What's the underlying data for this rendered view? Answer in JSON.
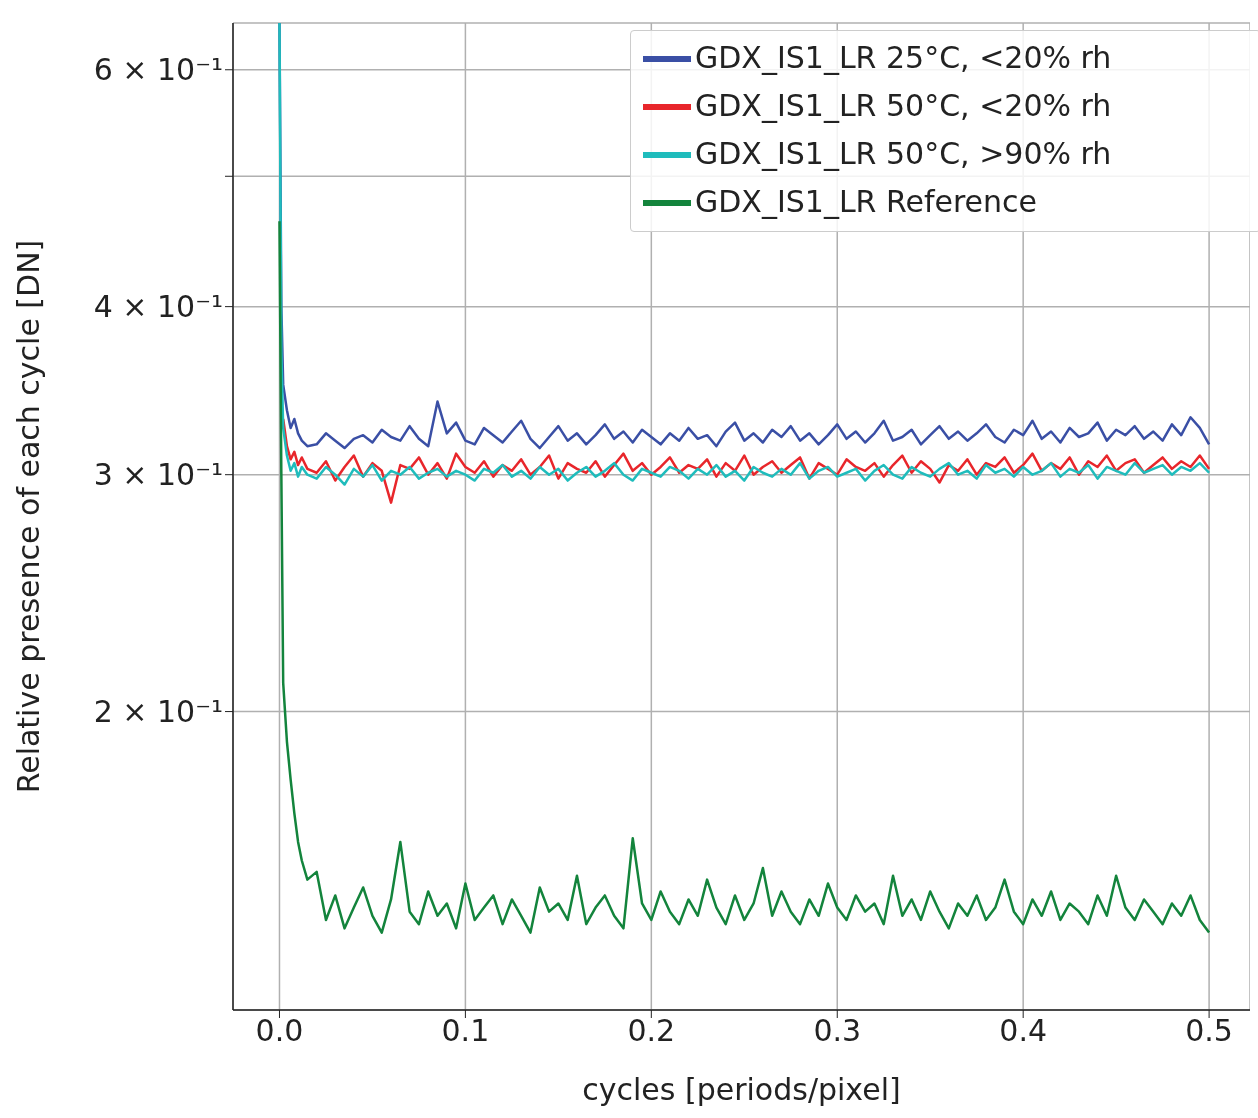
{
  "chart_data": {
    "type": "line",
    "xlabel": "cycles [periods/pixel]",
    "ylabel": "Relative presence of each cycle [DN]",
    "log": "y",
    "grid": true,
    "legend": "top right",
    "line_style": "solid",
    "marker": "none",
    "xlim": [
      -0.025,
      0.522
    ],
    "xticks": [
      {
        "value": 0,
        "label": "0.0"
      },
      0.1,
      0.2,
      0.3,
      0.4,
      0.5
    ],
    "ylim": [
      0.12,
      0.65
    ],
    "yticks": [
      {
        "value": 0.2,
        "label": "2 × 10⁻¹"
      },
      {
        "value": 0.3,
        "label": "3 × 10⁻¹"
      },
      {
        "value": 0.4,
        "label": "4 × 10⁻¹"
      },
      {
        "value": 0.5,
        "label": null
      },
      {
        "value": 0.6,
        "label": "6 × 10⁻¹"
      }
    ],
    "x": [
      0,
      0.001,
      0.002,
      0.004,
      0.006,
      0.008,
      0.01,
      0.012,
      0.015,
      0.02,
      0.025,
      0.03,
      0.035,
      0.04,
      0.045,
      0.05,
      0.055,
      0.06,
      0.065,
      0.07,
      0.075,
      0.08,
      0.085,
      0.09,
      0.095,
      0.1,
      0.105,
      0.11,
      0.115,
      0.12,
      0.125,
      0.13,
      0.135,
      0.14,
      0.145,
      0.15,
      0.155,
      0.16,
      0.165,
      0.17,
      0.175,
      0.18,
      0.185,
      0.19,
      0.195,
      0.2,
      0.205,
      0.21,
      0.215,
      0.22,
      0.225,
      0.23,
      0.235,
      0.24,
      0.245,
      0.25,
      0.255,
      0.26,
      0.265,
      0.27,
      0.275,
      0.28,
      0.285,
      0.29,
      0.295,
      0.3,
      0.305,
      0.31,
      0.315,
      0.32,
      0.325,
      0.33,
      0.335,
      0.34,
      0.345,
      0.35,
      0.355,
      0.36,
      0.365,
      0.37,
      0.375,
      0.38,
      0.385,
      0.39,
      0.395,
      0.4,
      0.405,
      0.41,
      0.415,
      0.42,
      0.425,
      0.43,
      0.435,
      0.44,
      0.445,
      0.45,
      0.455,
      0.46,
      0.465,
      0.47,
      0.475,
      0.48,
      0.485,
      0.49,
      0.495,
      0.5
    ],
    "series": [
      {
        "name": "GDX_IS1_LR 25°C, <20% rh",
        "color": "#3a4fa5",
        "values": [
          0.65,
          0.4,
          0.35,
          0.335,
          0.325,
          0.33,
          0.322,
          0.318,
          0.315,
          0.316,
          0.322,
          0.318,
          0.314,
          0.319,
          0.321,
          0.317,
          0.324,
          0.32,
          0.318,
          0.326,
          0.319,
          0.315,
          0.34,
          0.322,
          0.328,
          0.318,
          0.316,
          0.325,
          0.321,
          0.317,
          0.323,
          0.329,
          0.319,
          0.314,
          0.32,
          0.326,
          0.318,
          0.322,
          0.316,
          0.321,
          0.327,
          0.319,
          0.323,
          0.317,
          0.324,
          0.32,
          0.316,
          0.322,
          0.318,
          0.325,
          0.319,
          0.321,
          0.315,
          0.323,
          0.328,
          0.318,
          0.322,
          0.317,
          0.324,
          0.32,
          0.326,
          0.318,
          0.322,
          0.316,
          0.321,
          0.327,
          0.319,
          0.323,
          0.317,
          0.322,
          0.329,
          0.318,
          0.32,
          0.324,
          0.316,
          0.321,
          0.326,
          0.319,
          0.323,
          0.318,
          0.322,
          0.327,
          0.32,
          0.317,
          0.324,
          0.321,
          0.329,
          0.319,
          0.323,
          0.317,
          0.325,
          0.32,
          0.322,
          0.328,
          0.318,
          0.324,
          0.321,
          0.326,
          0.319,
          0.323,
          0.318,
          0.327,
          0.321,
          0.331,
          0.325,
          0.316
        ]
      },
      {
        "name": "GDX_IS1_LR 50°C, <20% rh",
        "color": "#e8262b",
        "values": [
          null,
          null,
          0.33,
          0.315,
          0.308,
          0.312,
          0.305,
          0.309,
          0.303,
          0.301,
          0.307,
          0.297,
          0.304,
          0.31,
          0.299,
          0.306,
          0.302,
          0.286,
          0.305,
          0.303,
          0.309,
          0.3,
          0.306,
          0.298,
          0.311,
          0.304,
          0.301,
          0.307,
          0.299,
          0.305,
          0.302,
          0.308,
          0.3,
          0.304,
          0.31,
          0.298,
          0.306,
          0.303,
          0.301,
          0.307,
          0.299,
          0.305,
          0.311,
          0.302,
          0.306,
          0.3,
          0.304,
          0.309,
          0.301,
          0.305,
          0.303,
          0.308,
          0.299,
          0.306,
          0.302,
          0.31,
          0.3,
          0.304,
          0.307,
          0.301,
          0.305,
          0.309,
          0.298,
          0.306,
          0.303,
          0.3,
          0.308,
          0.304,
          0.302,
          0.306,
          0.299,
          0.305,
          0.31,
          0.301,
          0.307,
          0.303,
          0.296,
          0.305,
          0.302,
          0.308,
          0.3,
          0.306,
          0.304,
          0.309,
          0.301,
          0.305,
          0.311,
          0.302,
          0.306,
          0.303,
          0.309,
          0.3,
          0.307,
          0.304,
          0.31,
          0.302,
          0.306,
          0.308,
          0.301,
          0.305,
          0.309,
          0.303,
          0.307,
          0.304,
          0.31,
          0.303
        ]
      },
      {
        "name": "GDX_IS1_LR 50°C, >90% rh",
        "color": "#1fbcbc",
        "values": [
          0.65,
          0.37,
          0.325,
          0.31,
          0.302,
          0.306,
          0.299,
          0.304,
          0.3,
          0.298,
          0.304,
          0.3,
          0.295,
          0.303,
          0.299,
          0.305,
          0.297,
          0.302,
          0.3,
          0.304,
          0.298,
          0.301,
          0.303,
          0.299,
          0.302,
          0.3,
          0.297,
          0.303,
          0.301,
          0.305,
          0.299,
          0.302,
          0.298,
          0.304,
          0.3,
          0.303,
          0.297,
          0.301,
          0.304,
          0.299,
          0.302,
          0.306,
          0.3,
          0.297,
          0.303,
          0.301,
          0.299,
          0.304,
          0.302,
          0.298,
          0.303,
          0.3,
          0.305,
          0.299,
          0.302,
          0.297,
          0.304,
          0.301,
          0.299,
          0.303,
          0.3,
          0.306,
          0.298,
          0.302,
          0.304,
          0.299,
          0.301,
          0.303,
          0.297,
          0.302,
          0.305,
          0.3,
          0.298,
          0.304,
          0.301,
          0.299,
          0.303,
          0.306,
          0.3,
          0.302,
          0.298,
          0.305,
          0.301,
          0.303,
          0.299,
          0.304,
          0.3,
          0.302,
          0.306,
          0.299,
          0.303,
          0.301,
          0.305,
          0.298,
          0.304,
          0.302,
          0.3,
          0.306,
          0.301,
          0.303,
          0.305,
          0.3,
          0.304,
          0.302,
          0.306,
          0.301
        ]
      },
      {
        "name": "GDX_IS1_LR Reference",
        "color": "#13843c",
        "values": [
          0.463,
          0.3,
          0.21,
          0.19,
          0.178,
          0.168,
          0.16,
          0.155,
          0.15,
          0.152,
          0.14,
          0.146,
          0.138,
          0.143,
          0.148,
          0.141,
          0.137,
          0.145,
          0.16,
          0.142,
          0.139,
          0.147,
          0.141,
          0.144,
          0.138,
          0.149,
          0.14,
          0.143,
          0.146,
          0.139,
          0.145,
          0.141,
          0.137,
          0.148,
          0.142,
          0.144,
          0.14,
          0.151,
          0.139,
          0.143,
          0.146,
          0.141,
          0.138,
          0.161,
          0.144,
          0.14,
          0.147,
          0.142,
          0.139,
          0.145,
          0.141,
          0.15,
          0.143,
          0.139,
          0.146,
          0.14,
          0.144,
          0.153,
          0.141,
          0.147,
          0.142,
          0.139,
          0.145,
          0.141,
          0.149,
          0.143,
          0.14,
          0.146,
          0.142,
          0.144,
          0.139,
          0.151,
          0.141,
          0.145,
          0.14,
          0.147,
          0.142,
          0.138,
          0.144,
          0.141,
          0.146,
          0.14,
          0.143,
          0.15,
          0.142,
          0.139,
          0.145,
          0.141,
          0.147,
          0.14,
          0.144,
          0.142,
          0.139,
          0.146,
          0.141,
          0.151,
          0.143,
          0.14,
          0.145,
          0.142,
          0.139,
          0.144,
          0.141,
          0.146,
          0.14,
          0.137
        ]
      }
    ]
  }
}
